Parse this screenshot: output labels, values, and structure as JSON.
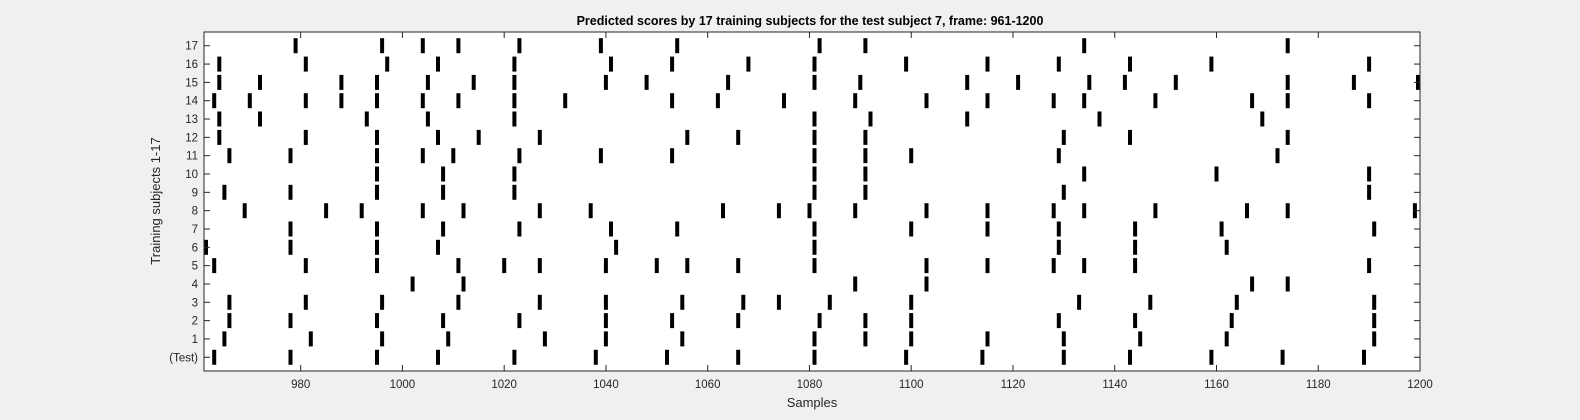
{
  "chart_data": {
    "type": "raster",
    "title": "Predicted scores by 17 training subjects for the test subject 7, frame: 961-1200",
    "xlabel": "Samples",
    "ylabel": "Training subjects 1-17",
    "xlim": [
      961,
      1200
    ],
    "x_ticks": [
      980,
      1000,
      1020,
      1040,
      1060,
      1080,
      1100,
      1120,
      1140,
      1160,
      1180,
      1200
    ],
    "rows": [
      "(Test)",
      "1",
      "2",
      "3",
      "4",
      "5",
      "6",
      "7",
      "8",
      "9",
      "10",
      "11",
      "12",
      "13",
      "14",
      "15",
      "16",
      "17"
    ],
    "grid": false,
    "colors": {
      "marks": "#000000",
      "axes_bg": "#ffffff",
      "figure_bg": "#f0f0f0"
    },
    "events": [
      [
        963,
        978,
        995,
        1007,
        1022,
        1038,
        1052,
        1066,
        1081,
        1099,
        1114,
        1130,
        1143,
        1159,
        1173,
        1189
      ],
      [
        965,
        982,
        996,
        1009,
        1028,
        1040,
        1055,
        1081,
        1091,
        1100,
        1115,
        1130,
        1145,
        1162,
        1191
      ],
      [
        966,
        978,
        995,
        1008,
        1023,
        1040,
        1053,
        1066,
        1082,
        1091,
        1100,
        1129,
        1144,
        1163,
        1191
      ],
      [
        966,
        981,
        996,
        1011,
        1027,
        1040,
        1055,
        1067,
        1074,
        1084,
        1100,
        1133,
        1147,
        1164,
        1191
      ],
      [
        1002,
        1012,
        1089,
        1103,
        1167,
        1174
      ],
      [
        963,
        981,
        995,
        1011,
        1020,
        1027,
        1040,
        1050,
        1056,
        1066,
        1081,
        1103,
        1115,
        1128,
        1134,
        1144,
        1190
      ],
      [
        961,
        978,
        995,
        1007,
        1042,
        1081,
        1129,
        1144,
        1162
      ],
      [
        978,
        995,
        1008,
        1023,
        1041,
        1054,
        1081,
        1100,
        1115,
        1129,
        1144,
        1161,
        1191
      ],
      [
        969,
        985,
        992,
        1004,
        1012,
        1027,
        1037,
        1063,
        1074,
        1080,
        1089,
        1103,
        1115,
        1128,
        1134,
        1148,
        1166,
        1174,
        1199
      ],
      [
        965,
        978,
        995,
        1008,
        1022,
        1081,
        1091,
        1130,
        1190
      ],
      [
        995,
        1008,
        1022,
        1081,
        1091,
        1134,
        1160,
        1190
      ],
      [
        966,
        978,
        995,
        1004,
        1010,
        1023,
        1039,
        1053,
        1081,
        1091,
        1100,
        1129,
        1172
      ],
      [
        964,
        981,
        995,
        1007,
        1015,
        1027,
        1056,
        1066,
        1081,
        1091,
        1130,
        1143,
        1174
      ],
      [
        964,
        972,
        993,
        1005,
        1022,
        1081,
        1092,
        1111,
        1137,
        1169
      ],
      [
        963,
        970,
        981,
        988,
        995,
        1004,
        1011,
        1022,
        1032,
        1053,
        1062,
        1075,
        1089,
        1103,
        1115,
        1128,
        1134,
        1148,
        1167,
        1174,
        1190
      ],
      [
        964,
        972,
        988,
        995,
        1005,
        1014,
        1022,
        1040,
        1048,
        1064,
        1081,
        1090,
        1111,
        1121,
        1135,
        1142,
        1152,
        1174,
        1187,
        1200
      ],
      [
        964,
        981,
        997,
        1007,
        1022,
        1041,
        1053,
        1068,
        1081,
        1099,
        1115,
        1129,
        1143,
        1159,
        1190
      ],
      [
        979,
        996,
        1004,
        1011,
        1023,
        1039,
        1054,
        1082,
        1091,
        1134,
        1174
      ]
    ]
  }
}
